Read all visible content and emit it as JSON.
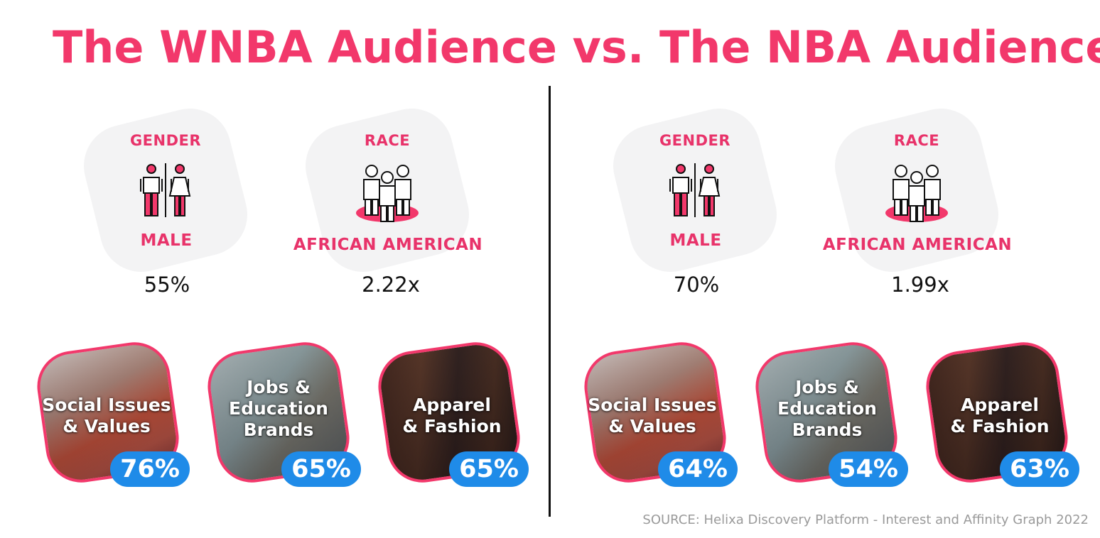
{
  "title": "The WNBA Audience vs. The NBA Audience",
  "colors": {
    "accent": "#f2386b",
    "badge": "#1f8be8",
    "text": "#111111",
    "source": "#9a9a9a"
  },
  "panels": [
    {
      "gender": {
        "heading": "GENDER",
        "label": "MALE",
        "value": "55%",
        "icon": "gender-icon"
      },
      "race": {
        "heading": "RACE",
        "label": "AFRICAN AMERICAN",
        "value": "2.22x",
        "icon": "group-people-icon"
      },
      "interests": [
        {
          "label_line1": "Social Issues",
          "label_line2": "& Values",
          "label_line3": "",
          "percent": "76%"
        },
        {
          "label_line1": "Jobs &",
          "label_line2": "Education",
          "label_line3": "Brands",
          "percent": "65%"
        },
        {
          "label_line1": "Apparel",
          "label_line2": "& Fashion",
          "label_line3": "",
          "percent": "65%"
        }
      ]
    },
    {
      "gender": {
        "heading": "GENDER",
        "label": "MALE",
        "value": "70%",
        "icon": "gender-icon"
      },
      "race": {
        "heading": "RACE",
        "label": "AFRICAN AMERICAN",
        "value": "1.99x",
        "icon": "group-people-icon"
      },
      "interests": [
        {
          "label_line1": "Social Issues",
          "label_line2": "& Values",
          "label_line3": "",
          "percent": "64%"
        },
        {
          "label_line1": "Jobs &",
          "label_line2": "Education",
          "label_line3": "Brands",
          "percent": "54%"
        },
        {
          "label_line1": "Apparel",
          "label_line2": "& Fashion",
          "label_line3": "",
          "percent": "63%"
        }
      ]
    }
  ],
  "source": "SOURCE: Helixa Discovery Platform - Interest and Affinity Graph 2022"
}
